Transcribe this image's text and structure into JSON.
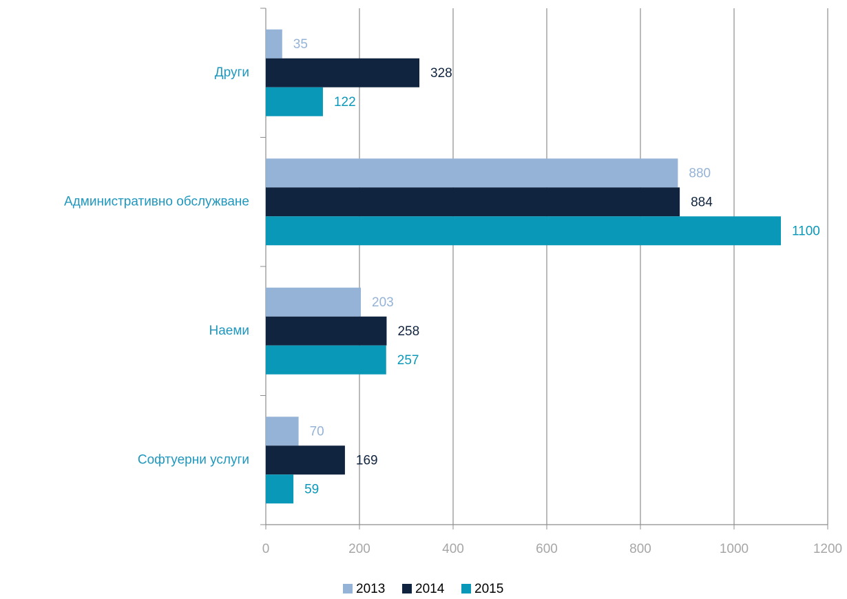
{
  "chart_data": {
    "type": "barh",
    "categories": [
      "Други",
      "Административно обслужване",
      "Наеми",
      "Софтуерни услуги"
    ],
    "series": [
      {
        "name": "2013",
        "color": "#95b3d7",
        "values": [
          35,
          880,
          203,
          70
        ]
      },
      {
        "name": "2014",
        "color": "#10243f",
        "values": [
          328,
          884,
          258,
          169
        ]
      },
      {
        "name": "2015",
        "color": "#0a98b9",
        "values": [
          122,
          1100,
          257,
          59
        ]
      }
    ],
    "xlim": [
      0,
      1200
    ],
    "xticks": [
      0,
      200,
      400,
      600,
      800,
      1000,
      1200
    ],
    "grid": true,
    "legend": "bottom"
  }
}
